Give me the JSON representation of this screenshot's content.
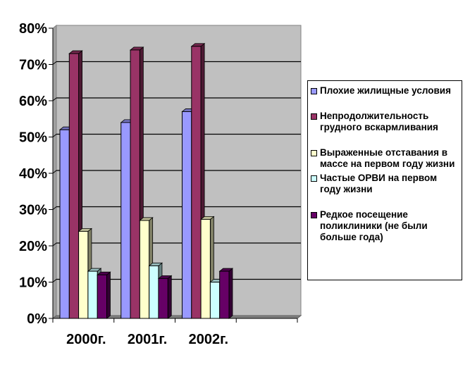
{
  "chart_data": {
    "type": "bar",
    "style": "3d-clustered-column",
    "categories": [
      "2000г.",
      "2001г.",
      "2002г."
    ],
    "ylim": [
      0,
      80
    ],
    "yticks": [
      "0%",
      "10%",
      "20%",
      "30%",
      "40%",
      "50%",
      "60%",
      "70%",
      "80%"
    ],
    "grid": true,
    "legend_position": "right",
    "series": [
      {
        "name": "Плохие жилищные условия",
        "color": "#9999ff",
        "values": [
          52,
          54,
          57
        ]
      },
      {
        "name": "Непродолжительность грудного вскармливания",
        "color": "#993366",
        "values": [
          73,
          74,
          75
        ]
      },
      {
        "name": "Выраженные отставания в массе на первом году жизни",
        "color": "#ffffcc",
        "values": [
          24,
          27,
          27.3
        ]
      },
      {
        "name": "Частые ОРВИ на первом году жизни",
        "color": "#ccffff",
        "values": [
          13,
          14.5,
          10
        ]
      },
      {
        "name": "Редкое посещение поликлиники (не были больше года)",
        "color": "#660066",
        "values": [
          12,
          11,
          13
        ]
      }
    ]
  }
}
